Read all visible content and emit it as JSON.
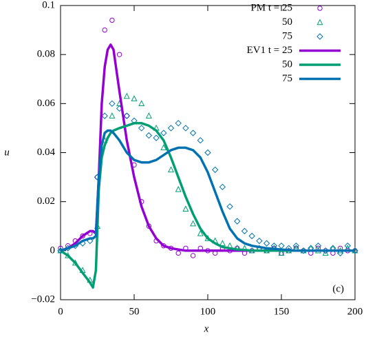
{
  "chart_data": {
    "type": "line",
    "xlabel": "x",
    "ylabel": "u",
    "annotation": "(c)",
    "xlim": [
      0,
      200
    ],
    "ylim": [
      -0.02,
      0.1
    ],
    "xticks": [
      0,
      50,
      100,
      150,
      200
    ],
    "yticks": [
      {
        "value": -0.02,
        "label": "−0.02"
      },
      0,
      0.02,
      0.04,
      0.06,
      0.08,
      0.1
    ],
    "legend": "top-right",
    "series": [
      {
        "name": "PM t = 25",
        "color": "#9400d3",
        "marker": "circle",
        "x": [
          0,
          5,
          10,
          15,
          20,
          25,
          30,
          35,
          40,
          45,
          50,
          55,
          60,
          65,
          70,
          75,
          80,
          85,
          90,
          95,
          100,
          105,
          110,
          115,
          120,
          125,
          130,
          135,
          140,
          145,
          150,
          155,
          160,
          165,
          170,
          175,
          180,
          185,
          190,
          195,
          200
        ],
        "values": [
          0.001,
          0.002,
          0.004,
          0.006,
          0.007,
          0.03,
          0.09,
          0.094,
          0.08,
          0.055,
          0.035,
          0.02,
          0.01,
          0.004,
          0.002,
          0.001,
          -0.001,
          0.001,
          -0.002,
          0.001,
          0,
          -0.001,
          0.001,
          0,
          0.001,
          -0.001,
          0,
          0.001,
          0,
          0.001,
          -0.001,
          0,
          0.001,
          0,
          -0.001,
          0.001,
          0,
          -0.001,
          0.001,
          0,
          0
        ]
      },
      {
        "name": "50",
        "color": "#009e73",
        "marker": "triangle",
        "x": [
          0,
          5,
          10,
          15,
          20,
          25,
          30,
          35,
          40,
          45,
          50,
          55,
          60,
          65,
          70,
          75,
          80,
          85,
          90,
          95,
          100,
          105,
          110,
          115,
          120,
          125,
          130,
          135,
          140,
          145,
          150,
          155,
          160,
          165,
          170,
          175,
          180,
          185,
          190,
          195,
          200
        ],
        "values": [
          0,
          -0.002,
          -0.005,
          -0.008,
          -0.012,
          0.01,
          0.045,
          0.055,
          0.06,
          0.063,
          0.062,
          0.06,
          0.055,
          0.05,
          0.042,
          0.033,
          0.025,
          0.017,
          0.011,
          0.007,
          0.005,
          0.004,
          0.003,
          0.002,
          0.001,
          0.001,
          0,
          0.001,
          0,
          0.001,
          -0.001,
          0,
          0.001,
          0,
          0.001,
          0,
          -0.001,
          0.001,
          0,
          0.001,
          0
        ]
      },
      {
        "name": "75",
        "color": "#0072b2",
        "marker": "diamond",
        "x": [
          0,
          5,
          10,
          15,
          20,
          25,
          30,
          35,
          40,
          45,
          50,
          55,
          60,
          65,
          70,
          75,
          80,
          85,
          90,
          95,
          100,
          105,
          110,
          115,
          120,
          125,
          130,
          135,
          140,
          145,
          150,
          155,
          160,
          165,
          170,
          175,
          180,
          185,
          190,
          195,
          200
        ],
        "values": [
          0,
          0.001,
          0.002,
          0.003,
          0.004,
          0.03,
          0.055,
          0.06,
          0.058,
          0.055,
          0.053,
          0.05,
          0.047,
          0.046,
          0.048,
          0.05,
          0.052,
          0.05,
          0.048,
          0.045,
          0.04,
          0.033,
          0.026,
          0.018,
          0.012,
          0.008,
          0.006,
          0.004,
          0.003,
          0.002,
          0.002,
          0.001,
          0.002,
          0,
          0.001,
          0.002,
          0,
          0.001,
          -0.001,
          0.002,
          0
        ]
      },
      {
        "name": "EV1 t = 25",
        "color": "#9400d3",
        "marker": "line",
        "x": [
          0,
          5,
          10,
          15,
          20,
          22,
          24,
          26,
          28,
          30,
          32,
          34,
          36,
          40,
          45,
          50,
          55,
          60,
          65,
          70,
          75,
          80,
          85,
          90,
          95,
          100,
          105,
          110,
          115,
          120,
          125,
          130,
          140,
          150,
          160,
          170,
          180,
          190,
          200
        ],
        "values": [
          0,
          0.001,
          0.003,
          0.006,
          0.008,
          0.008,
          0.007,
          0.03,
          0.06,
          0.075,
          0.082,
          0.084,
          0.082,
          0.065,
          0.045,
          0.03,
          0.018,
          0.01,
          0.005,
          0.002,
          0.001,
          0.0005,
          0,
          0,
          0,
          0,
          0,
          0,
          0,
          0,
          0,
          0,
          0,
          0,
          0,
          0,
          0,
          0,
          0
        ]
      },
      {
        "name": "50",
        "color": "#009e73",
        "marker": "line",
        "x": [
          0,
          5,
          10,
          15,
          20,
          22,
          24,
          26,
          28,
          30,
          32,
          34,
          36,
          40,
          45,
          50,
          55,
          60,
          65,
          70,
          75,
          80,
          85,
          90,
          95,
          100,
          105,
          110,
          115,
          120,
          125,
          130,
          140,
          150,
          160,
          170,
          180,
          190,
          200
        ],
        "values": [
          0,
          -0.002,
          -0.005,
          -0.009,
          -0.013,
          -0.015,
          -0.008,
          0.025,
          0.038,
          0.043,
          0.046,
          0.048,
          0.049,
          0.05,
          0.051,
          0.052,
          0.052,
          0.051,
          0.049,
          0.045,
          0.038,
          0.03,
          0.022,
          0.015,
          0.009,
          0.005,
          0.003,
          0.0015,
          0.001,
          0.0005,
          0.0003,
          0,
          0,
          0,
          0,
          0,
          0,
          0,
          0
        ]
      },
      {
        "name": "75",
        "color": "#0072b2",
        "marker": "line",
        "x": [
          0,
          5,
          10,
          15,
          20,
          22,
          24,
          26,
          28,
          30,
          32,
          34,
          36,
          40,
          45,
          50,
          55,
          60,
          65,
          70,
          75,
          80,
          85,
          90,
          95,
          100,
          105,
          110,
          115,
          120,
          125,
          130,
          140,
          150,
          160,
          170,
          180,
          190,
          200
        ],
        "values": [
          0,
          0.001,
          0.002,
          0.004,
          0.005,
          0.005,
          0.006,
          0.03,
          0.043,
          0.048,
          0.049,
          0.049,
          0.048,
          0.045,
          0.04,
          0.037,
          0.036,
          0.036,
          0.037,
          0.039,
          0.041,
          0.042,
          0.042,
          0.041,
          0.038,
          0.032,
          0.024,
          0.016,
          0.009,
          0.005,
          0.003,
          0.002,
          0.001,
          0.0005,
          0,
          0,
          0,
          0,
          0
        ]
      }
    ]
  }
}
